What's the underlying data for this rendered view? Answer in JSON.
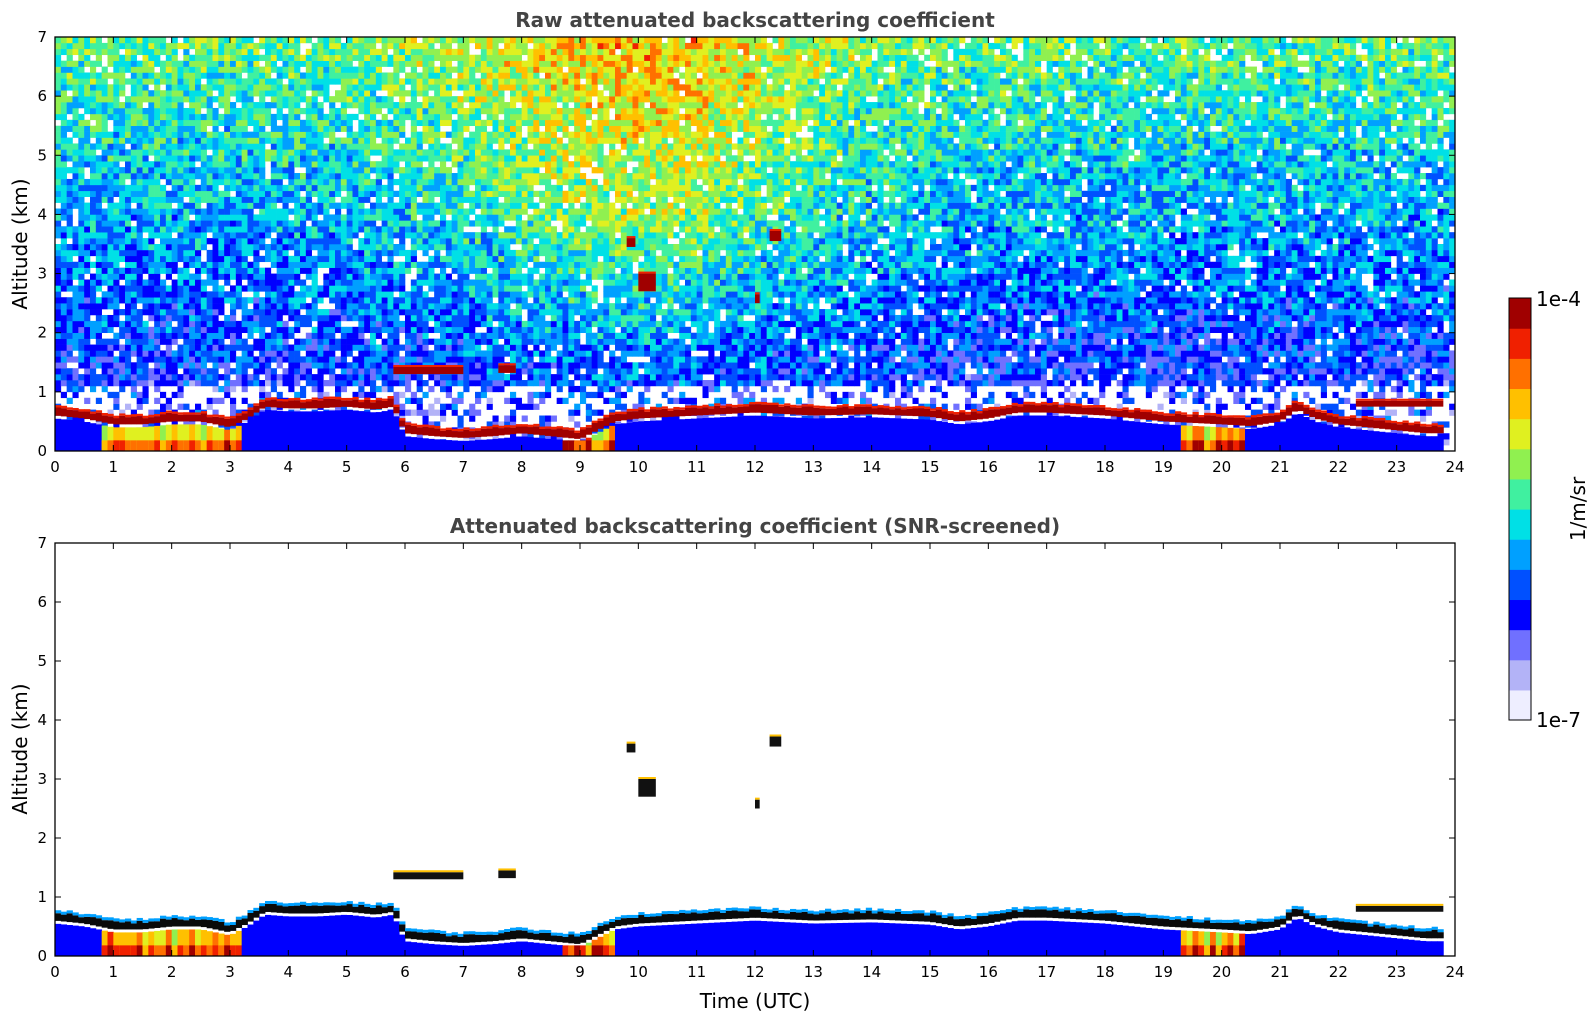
{
  "chart_data": [
    {
      "type": "heatmap",
      "title": "Raw attenuated backscattering coefficient",
      "xlabel": "",
      "ylabel": "Altitude (km)",
      "xlim": [
        0,
        24
      ],
      "ylim": [
        0,
        7
      ],
      "xticks": [
        "0",
        "1",
        "2",
        "3",
        "4",
        "5",
        "6",
        "7",
        "8",
        "9",
        "10",
        "11",
        "12",
        "13",
        "14",
        "15",
        "16",
        "17",
        "18",
        "19",
        "20",
        "21",
        "22",
        "23",
        "24"
      ],
      "yticks": [
        "0",
        "1",
        "2",
        "3",
        "4",
        "5",
        "6",
        "7"
      ],
      "screened": false
    },
    {
      "type": "heatmap",
      "title": "Attenuated backscattering coefficient (SNR-screened)",
      "xlabel": "Time (UTC)",
      "ylabel": "Altitude (km)",
      "xlim": [
        0,
        24
      ],
      "ylim": [
        0,
        7
      ],
      "xticks": [
        "0",
        "1",
        "2",
        "3",
        "4",
        "5",
        "6",
        "7",
        "8",
        "9",
        "10",
        "11",
        "12",
        "13",
        "14",
        "15",
        "16",
        "17",
        "18",
        "19",
        "20",
        "21",
        "22",
        "23",
        "24"
      ],
      "yticks": [
        "0",
        "1",
        "2",
        "3",
        "4",
        "5",
        "6",
        "7"
      ],
      "screened": true
    }
  ],
  "profile": {
    "time_h": [
      0,
      0.5,
      1,
      1.5,
      2,
      2.5,
      3,
      3.3,
      3.6,
      4,
      4.5,
      5,
      5.5,
      5.8,
      6,
      6.5,
      7,
      7.5,
      8,
      8.5,
      9,
      9.3,
      9.6,
      10,
      11,
      12,
      13,
      14,
      14.5,
      15,
      15.5,
      16,
      16.5,
      17,
      18,
      19,
      20,
      20.5,
      21,
      21.3,
      21.6,
      22,
      22.5,
      23,
      23.5,
      23.8
    ],
    "cloud_base_km": [
      0.6,
      0.55,
      0.45,
      0.45,
      0.5,
      0.5,
      0.4,
      0.55,
      0.75,
      0.72,
      0.72,
      0.75,
      0.7,
      0.75,
      0.3,
      0.25,
      0.22,
      0.25,
      0.3,
      0.25,
      0.2,
      0.35,
      0.5,
      0.55,
      0.6,
      0.65,
      0.6,
      0.62,
      0.6,
      0.58,
      0.5,
      0.55,
      0.65,
      0.65,
      0.6,
      0.5,
      0.45,
      0.42,
      0.5,
      0.7,
      0.55,
      0.45,
      0.4,
      0.35,
      0.3,
      0.3
    ]
  },
  "features": [
    {
      "label": "elevated layer",
      "t0": 5.8,
      "t1": 7.0,
      "h0": 1.3,
      "h1": 1.42
    },
    {
      "label": "elevated layer",
      "t0": 7.6,
      "t1": 7.9,
      "h0": 1.32,
      "h1": 1.45
    },
    {
      "label": "cloud fragment",
      "t0": 9.8,
      "t1": 9.95,
      "h0": 3.45,
      "h1": 3.6
    },
    {
      "label": "cloud fragment",
      "t0": 10.0,
      "t1": 10.3,
      "h0": 2.7,
      "h1": 3.0
    },
    {
      "label": "cloud fragment",
      "t0": 12.25,
      "t1": 12.45,
      "h0": 3.55,
      "h1": 3.72
    },
    {
      "label": "cloud fragment",
      "t0": 12.0,
      "t1": 12.08,
      "h0": 2.5,
      "h1": 2.65
    },
    {
      "label": "upper layer",
      "t0": 22.3,
      "t1": 23.8,
      "h0": 0.75,
      "h1": 0.85
    }
  ],
  "colorbar": {
    "min_label": "1e-7",
    "max_label": "1e-4",
    "unit_label": "1/m/sr",
    "colors": [
      "#eeeeff",
      "#b3b3f7",
      "#7070ff",
      "#0000ff",
      "#0050ff",
      "#00a0ff",
      "#00e0e6",
      "#40f0a0",
      "#90f050",
      "#e0f020",
      "#ffc000",
      "#ff7000",
      "#f02000",
      "#a00000"
    ]
  }
}
